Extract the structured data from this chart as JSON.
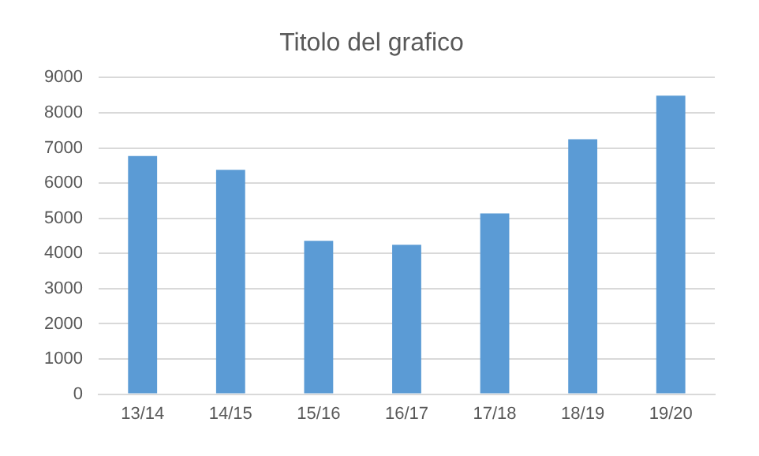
{
  "chart_data": {
    "type": "bar",
    "title": "Titolo del grafico",
    "categories": [
      "13/14",
      "14/15",
      "15/16",
      "16/17",
      "17/18",
      "18/19",
      "19/20"
    ],
    "values": [
      6770,
      6380,
      4360,
      4250,
      5140,
      7250,
      8490
    ],
    "color": "#5b9bd5",
    "ylim": [
      0,
      9000
    ],
    "yticks": [
      0,
      1000,
      2000,
      3000,
      4000,
      5000,
      6000,
      7000,
      8000,
      9000
    ],
    "grid": "y",
    "legend": false
  }
}
